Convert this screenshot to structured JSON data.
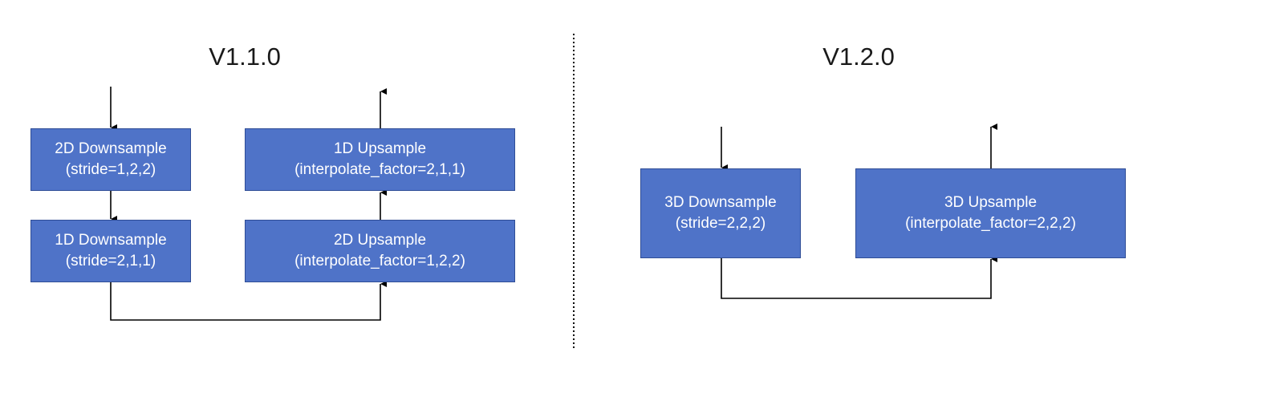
{
  "left_panel": {
    "title": "V1.1.0",
    "down_2d": {
      "line1": "2D Downsample",
      "line2": "(stride=1,2,2)"
    },
    "down_1d": {
      "line1": "1D Downsample",
      "line2": "(stride=2,1,1)"
    },
    "up_1d": {
      "line1": "1D Upsample",
      "line2": "(interpolate_factor=2,1,1)"
    },
    "up_2d": {
      "line1": "2D Upsample",
      "line2": "(interpolate_factor=1,2,2)"
    }
  },
  "right_panel": {
    "title": "V1.2.0",
    "down_3d": {
      "line1": "3D Downsample",
      "line2": "(stride=2,2,2)"
    },
    "up_3d": {
      "line1": "3D Upsample",
      "line2": "(interpolate_factor=2,2,2)"
    }
  },
  "colors": {
    "box_fill": "#4f73c8",
    "box_border": "#2f4d96",
    "text": "#ffffff",
    "line": "#000000"
  }
}
